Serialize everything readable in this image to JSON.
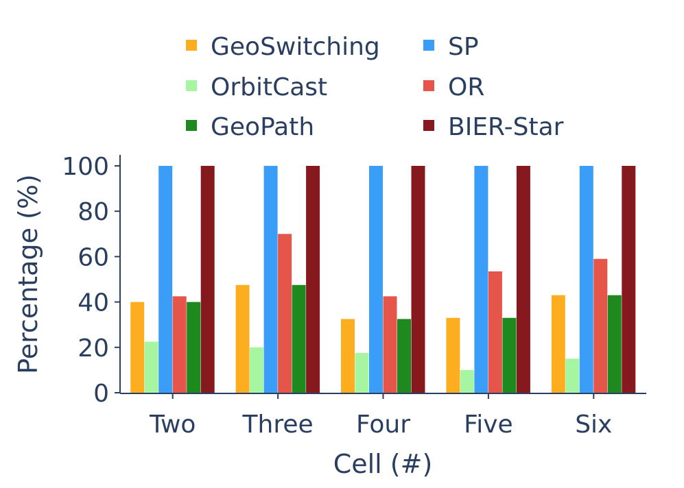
{
  "chart_data": {
    "type": "bar",
    "xlabel": "Cell (#)",
    "ylabel": "Percentage (%)",
    "ylim": [
      0,
      100
    ],
    "yticks": [
      0,
      20,
      40,
      60,
      80,
      100
    ],
    "categories": [
      "Two",
      "Three",
      "Four",
      "Five",
      "Six"
    ],
    "series": [
      {
        "name": "GeoSwitching",
        "color": "#fdae20",
        "values": [
          40,
          47.5,
          32.5,
          33,
          43
        ]
      },
      {
        "name": "SP",
        "color": "#3a9ef8",
        "values": [
          100,
          100,
          100,
          100,
          100
        ]
      },
      {
        "name": "OrbitCast",
        "color": "#a6f5a0",
        "values": [
          22.5,
          20,
          17.5,
          10,
          15
        ]
      },
      {
        "name": "OR",
        "color": "#e55549",
        "values": [
          42.5,
          70,
          42.5,
          53.5,
          59
        ]
      },
      {
        "name": "GeoPath",
        "color": "#1e891e",
        "values": [
          40,
          47.5,
          32.5,
          33,
          43
        ]
      },
      {
        "name": "BIER-Star",
        "color": "#86191d",
        "values": [
          100,
          100,
          100,
          100,
          100
        ]
      }
    ],
    "legend_position": "top",
    "grid": false
  }
}
